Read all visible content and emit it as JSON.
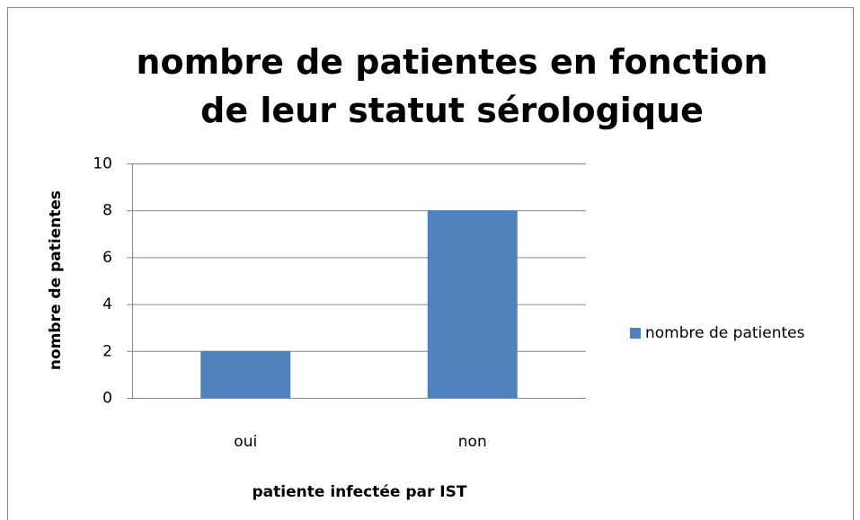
{
  "chart_data": {
    "type": "bar",
    "title": "nombre de patientes en fonction de leur statut sérologique",
    "x_label": "patiente infectée par IST",
    "y_label": "nombre de patientes",
    "categories": [
      "oui",
      "non"
    ],
    "series": [
      {
        "name": "nombre de patientes",
        "color": "#4f81bd",
        "values": [
          2,
          8
        ]
      }
    ],
    "ylim": [
      0,
      10
    ],
    "yticks": [
      0,
      2,
      4,
      6,
      8,
      10
    ],
    "grid": true,
    "legend": "right"
  }
}
